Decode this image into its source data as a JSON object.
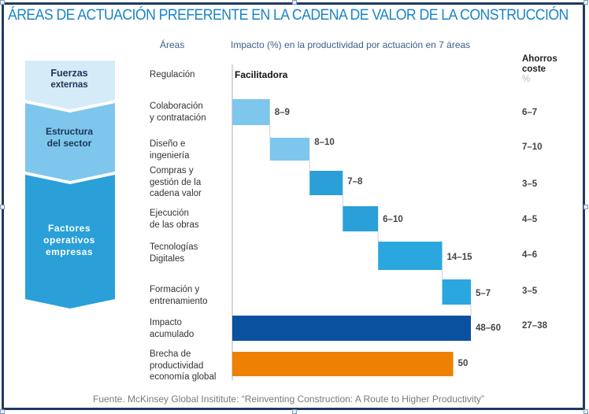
{
  "title": "ÁREAS DE ACTUACIÓN PREFERENTE EN LA CADENA DE VALOR DE LA CONSTRUCCIÓN",
  "headers": {
    "areas": "Áreas",
    "impact": "Impacto (%) en la productividad por actuación en 7 áreas",
    "savings_line1": "Ahorros",
    "savings_line2": "coste",
    "savings_unit": "%"
  },
  "chevrons": [
    {
      "line1": "Fuerzas",
      "line2": "externas",
      "color": "#d6ebf8",
      "text_color": "#1d3557"
    },
    {
      "line1": "Estructura",
      "line2": "del sector",
      "color": "#7ec6ec",
      "text_color": "#1d3557"
    },
    {
      "line1": "Factores",
      "line2": "operativos",
      "line3": "empresas",
      "color": "#2a9fd8",
      "text_color": "#ffffff"
    }
  ],
  "footer": "Fuente. McKinsey Global Insititute: “Reinventing Construction: A Route to Higher Productivity”",
  "chart_data": {
    "type": "bar",
    "subtype": "waterfall-horizontal",
    "title": "Impacto (%) en la productividad por actuación en 7 áreas",
    "xlabel": "",
    "ylabel": "Áreas",
    "categories": [
      "Regulación",
      "Colaboración y contratación",
      "Diseño e ingeniería",
      "Compras y gestión de la cadena valor",
      "Ejecución de las obras",
      "Tecnologías Digitales",
      "Formación y entrenamiento",
      "Impacto acumulado",
      "Brecha de productividad economía global"
    ],
    "category_lines": [
      [
        "Regulación"
      ],
      [
        "Colaboración",
        "y contratación"
      ],
      [
        "Diseño e",
        "ingeniería"
      ],
      [
        "Compras y",
        "gestión de la",
        "cadena valor"
      ],
      [
        "Ejecución",
        "de las obras"
      ],
      [
        "Tecnologías",
        "Digitales"
      ],
      [
        "Formación y",
        "entrenamiento"
      ],
      [
        "Impacto",
        "acumulado"
      ],
      [
        "Brecha de",
        "productividad",
        "economía global"
      ]
    ],
    "series": [
      {
        "name": "Impacto en la productividad (%)",
        "labels": [
          "Facilitadora",
          "8–9",
          "8–10",
          "7–8",
          "6–10",
          "14–15",
          "5–7",
          "48–60",
          "50"
        ],
        "start": [
          null,
          0,
          8.5,
          17.5,
          25,
          33,
          47.5,
          0,
          0
        ],
        "end": [
          null,
          8.5,
          17.5,
          25,
          33,
          47.5,
          54,
          54,
          50
        ],
        "colors": [
          null,
          "#7ec6ec",
          "#7ec6ec",
          "#2a9fd8",
          "#2a9fd8",
          "#2aa7de",
          "#2aa7de",
          "#0a51a0",
          "#ee8103"
        ]
      },
      {
        "name": "Ahorros coste %",
        "labels": [
          "",
          "6–7",
          "7–10",
          "3–5",
          "4–5",
          "4–6",
          "3–5",
          "27–38",
          ""
        ]
      }
    ],
    "xlim": [
      0,
      54
    ],
    "grid": false,
    "legend": "none"
  }
}
